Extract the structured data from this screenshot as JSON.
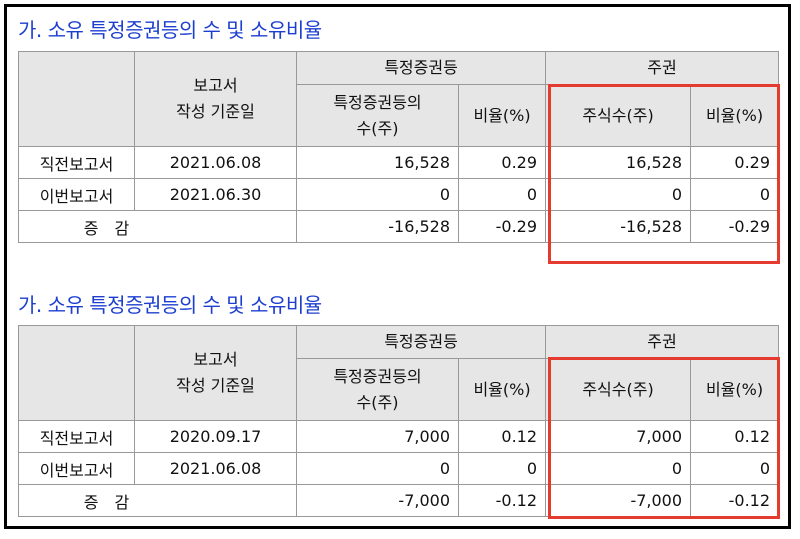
{
  "sections": [
    {
      "title": "가. 소유 특정증권등의 수 및 소유비율",
      "headers": {
        "report_date": "보고서\n작성 기준일",
        "group_securities": "특정증권등",
        "group_shares": "주권",
        "securities_count": "특정증권등의\n수(주)",
        "ratio": "비율(%)",
        "share_count": "주식수(주)",
        "share_ratio": "비율(%)"
      },
      "rows": [
        {
          "label": "직전보고서",
          "date": "2021.06.08",
          "sec_count": "16,528",
          "sec_ratio": "0.29",
          "share_count": "16,528",
          "share_ratio": "0.29"
        },
        {
          "label": "이번보고서",
          "date": "2021.06.30",
          "sec_count": "0",
          "sec_ratio": "0",
          "share_count": "0",
          "share_ratio": "0"
        }
      ],
      "change": {
        "label": "증　감",
        "sec_count": "-16,528",
        "sec_ratio": "-0.29",
        "share_count": "-16,528",
        "share_ratio": "-0.29"
      }
    },
    {
      "title": "가. 소유 특정증권등의 수 및 소유비율",
      "headers": {
        "report_date": "보고서\n작성 기준일",
        "group_securities": "특정증권등",
        "group_shares": "주권",
        "securities_count": "특정증권등의\n수(주)",
        "ratio": "비율(%)",
        "share_count": "주식수(주)",
        "share_ratio": "비율(%)"
      },
      "rows": [
        {
          "label": "직전보고서",
          "date": "2020.09.17",
          "sec_count": "7,000",
          "sec_ratio": "0.12",
          "share_count": "7,000",
          "share_ratio": "0.12"
        },
        {
          "label": "이번보고서",
          "date": "2021.06.08",
          "sec_count": "0",
          "sec_ratio": "0",
          "share_count": "0",
          "share_ratio": "0"
        }
      ],
      "change": {
        "label": "증　감",
        "sec_count": "-7,000",
        "sec_ratio": "-0.12",
        "share_count": "-7,000",
        "share_ratio": "-0.12"
      }
    }
  ],
  "colors": {
    "title": "#1d3fd0",
    "highlight": "#e53a2f",
    "header_bg": "#e6e6e6"
  }
}
